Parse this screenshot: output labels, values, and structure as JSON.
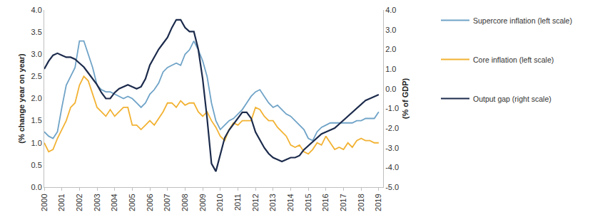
{
  "chart_data": {
    "type": "line",
    "x": [
      2000,
      2000.25,
      2000.5,
      2000.75,
      2001,
      2001.25,
      2001.5,
      2001.75,
      2002,
      2002.25,
      2002.5,
      2002.75,
      2003,
      2003.25,
      2003.5,
      2003.75,
      2004,
      2004.25,
      2004.5,
      2004.75,
      2005,
      2005.25,
      2005.5,
      2005.75,
      2006,
      2006.25,
      2006.5,
      2006.75,
      2007,
      2007.25,
      2007.5,
      2007.75,
      2008,
      2008.25,
      2008.5,
      2008.75,
      2009,
      2009.25,
      2009.5,
      2009.75,
      2010,
      2010.25,
      2010.5,
      2010.75,
      2011,
      2011.25,
      2011.5,
      2011.75,
      2012,
      2012.25,
      2012.5,
      2012.75,
      2013,
      2013.25,
      2013.5,
      2013.75,
      2014,
      2014.25,
      2014.5,
      2014.75,
      2015,
      2015.25,
      2015.5,
      2015.75,
      2016,
      2016.25,
      2016.5,
      2016.75,
      2017,
      2017.25,
      2017.5,
      2017.75,
      2018,
      2018.25,
      2018.5,
      2018.75,
      2019
    ],
    "series": [
      {
        "name": "Supercore inflation (left scale)",
        "color": "#6fa3c7",
        "values": [
          1.25,
          1.15,
          1.1,
          1.25,
          1.8,
          2.3,
          2.5,
          2.7,
          3.3,
          3.3,
          3.0,
          2.7,
          2.3,
          2.2,
          2.15,
          2.15,
          2.1,
          2.05,
          2.0,
          2.05,
          2.0,
          1.9,
          1.8,
          1.9,
          2.1,
          2.2,
          2.35,
          2.6,
          2.7,
          2.75,
          2.8,
          2.75,
          3.0,
          3.1,
          3.3,
          3.1,
          2.85,
          2.5,
          1.9,
          1.5,
          1.3,
          1.4,
          1.5,
          1.55,
          1.65,
          1.75,
          1.9,
          2.05,
          2.15,
          2.2,
          2.05,
          1.9,
          1.8,
          1.85,
          1.75,
          1.65,
          1.6,
          1.5,
          1.4,
          1.3,
          1.1,
          1.05,
          1.25,
          1.35,
          1.4,
          1.45,
          1.45,
          1.45,
          1.45,
          1.45,
          1.45,
          1.5,
          1.5,
          1.55,
          1.55,
          1.55,
          1.7
        ]
      },
      {
        "name": "Core inflation (left scale)",
        "color": "#f2b233",
        "values": [
          1.0,
          0.8,
          0.85,
          1.1,
          1.3,
          1.5,
          1.8,
          1.9,
          2.3,
          2.5,
          2.4,
          2.1,
          1.8,
          1.7,
          1.6,
          1.75,
          1.6,
          1.7,
          1.8,
          1.8,
          1.4,
          1.4,
          1.3,
          1.4,
          1.5,
          1.4,
          1.55,
          1.7,
          1.9,
          1.9,
          1.8,
          1.95,
          1.85,
          1.9,
          1.9,
          1.7,
          1.6,
          1.7,
          1.5,
          1.35,
          1.15,
          1.05,
          1.3,
          1.45,
          1.4,
          1.5,
          1.5,
          1.5,
          1.8,
          1.75,
          1.6,
          1.5,
          1.5,
          1.35,
          1.25,
          1.15,
          0.95,
          0.9,
          0.95,
          0.8,
          0.75,
          0.85,
          1.0,
          0.95,
          1.15,
          1.0,
          0.85,
          0.9,
          0.85,
          1.0,
          0.9,
          1.05,
          1.1,
          1.05,
          1.05,
          1.0,
          1.0
        ]
      },
      {
        "name": "Output gap (right scale)",
        "color": "#1c2b4c",
        "axis": "y2",
        "values": [
          1.0,
          1.4,
          1.7,
          1.8,
          1.7,
          1.6,
          1.6,
          1.5,
          1.3,
          1.1,
          0.8,
          0.5,
          0.2,
          -0.2,
          -0.5,
          -0.5,
          -0.2,
          0.0,
          0.1,
          0.2,
          0.1,
          0.0,
          0.1,
          0.5,
          1.2,
          1.6,
          2.0,
          2.3,
          2.6,
          3.1,
          3.5,
          3.5,
          3.1,
          2.9,
          2.9,
          2.0,
          0.5,
          -1.5,
          -3.8,
          -4.2,
          -3.3,
          -2.5,
          -2.1,
          -1.8,
          -1.5,
          -1.2,
          -1.2,
          -1.5,
          -2.2,
          -2.6,
          -3.0,
          -3.3,
          -3.5,
          -3.6,
          -3.7,
          -3.6,
          -3.5,
          -3.5,
          -3.4,
          -3.1,
          -2.9,
          -2.7,
          -2.5,
          -2.3,
          -2.2,
          -2.1,
          -2.0,
          -1.8,
          -1.6,
          -1.4,
          -1.2,
          -1.0,
          -0.8,
          -0.6,
          -0.5,
          -0.4,
          -0.3
        ]
      }
    ],
    "y_label": "(% change year on year)",
    "y2_label": "(% of GDP)",
    "xlim": [
      2000,
      2019.25
    ],
    "xticks": [
      2000,
      2001,
      2002,
      2003,
      2004,
      2005,
      2006,
      2007,
      2008,
      2009,
      2010,
      2011,
      2012,
      2013,
      2014,
      2015,
      2016,
      2017,
      2018,
      2019
    ],
    "ylim": [
      0,
      4
    ],
    "yticks": [
      {
        "value": 0,
        "label": "0.0"
      },
      0.5,
      {
        "value": 1,
        "label": "1.0"
      },
      1.5,
      {
        "value": 2,
        "label": "2.0"
      },
      2.5,
      {
        "value": 3,
        "label": "3.0"
      },
      3.5,
      {
        "value": 4,
        "label": "4.0"
      }
    ],
    "y2lim": [
      -5,
      4
    ],
    "y2ticks": [
      {
        "value": -5,
        "label": "-5.0"
      },
      {
        "value": -4,
        "label": "-4.0"
      },
      {
        "value": -3,
        "label": "-3.0"
      },
      {
        "value": -2,
        "label": "-2.0"
      },
      {
        "value": -1,
        "label": "-1.0"
      },
      {
        "value": 0,
        "label": "0.0"
      },
      {
        "value": 1,
        "label": "1.0"
      },
      {
        "value": 2,
        "label": "2.0"
      },
      {
        "value": 3,
        "label": "3.0"
      },
      {
        "value": 4,
        "label": "4.0"
      }
    ],
    "grid": false,
    "legend": "right"
  }
}
